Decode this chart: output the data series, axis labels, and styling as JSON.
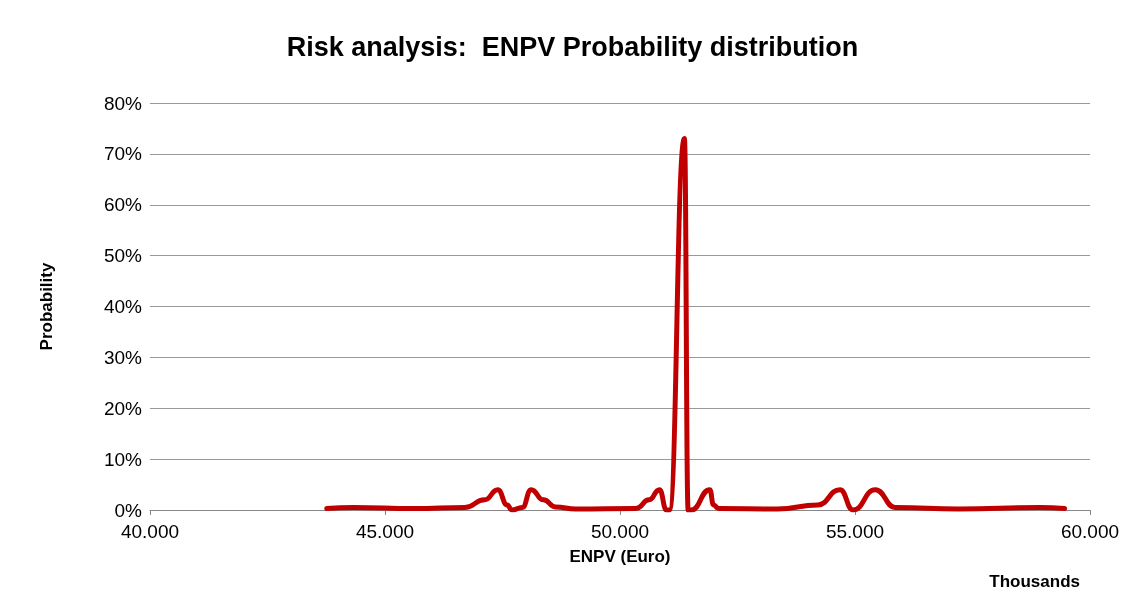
{
  "chart_data": {
    "type": "line",
    "title": "Risk analysis:  ENPV Probability distribution",
    "xlabel": "ENPV (Euro)",
    "ylabel": "Probability",
    "annotations": [
      "Thousands"
    ],
    "series": [
      {
        "color": "#c00000",
        "x": [
          43760,
          44330,
          45620,
          46700,
          47120,
          47400,
          47600,
          47700,
          47920,
          48110,
          48370,
          48630,
          49060,
          50340,
          50620,
          50840,
          50990,
          51050,
          51370,
          51450,
          51520,
          51910,
          51990,
          52100,
          53350,
          54210,
          54680,
          54960,
          55430,
          55860,
          57210,
          58930,
          59460
        ],
        "values": [
          0.3,
          0.5,
          0.3,
          0.5,
          2,
          4,
          1,
          0,
          0.5,
          4,
          2,
          0.6,
          0.2,
          0.3,
          2,
          4,
          0,
          0,
          73,
          0,
          0,
          4,
          1,
          0.3,
          0.2,
          1,
          4,
          0,
          4,
          0.5,
          0.2,
          0.5,
          0.3
        ]
      }
    ],
    "xlim": [
      40000,
      60000
    ],
    "xticks": [
      {
        "value": 40000,
        "label": "40.000"
      },
      {
        "value": 45000,
        "label": "45.000"
      },
      {
        "value": 50000,
        "label": "50.000"
      },
      {
        "value": 55000,
        "label": "55.000"
      },
      {
        "value": 60000,
        "label": "60.000"
      }
    ],
    "ylim": [
      0,
      80
    ],
    "yticks": [
      {
        "value": 0,
        "label": "0%"
      },
      {
        "value": 10,
        "label": "10%"
      },
      {
        "value": 20,
        "label": "20%"
      },
      {
        "value": 30,
        "label": "30%"
      },
      {
        "value": 40,
        "label": "40%"
      },
      {
        "value": 50,
        "label": "50%"
      },
      {
        "value": 60,
        "label": "60%"
      },
      {
        "value": 70,
        "label": "70%"
      },
      {
        "value": 80,
        "label": "80%"
      }
    ],
    "grid": "y",
    "marker": "none",
    "line_style": "solid"
  }
}
